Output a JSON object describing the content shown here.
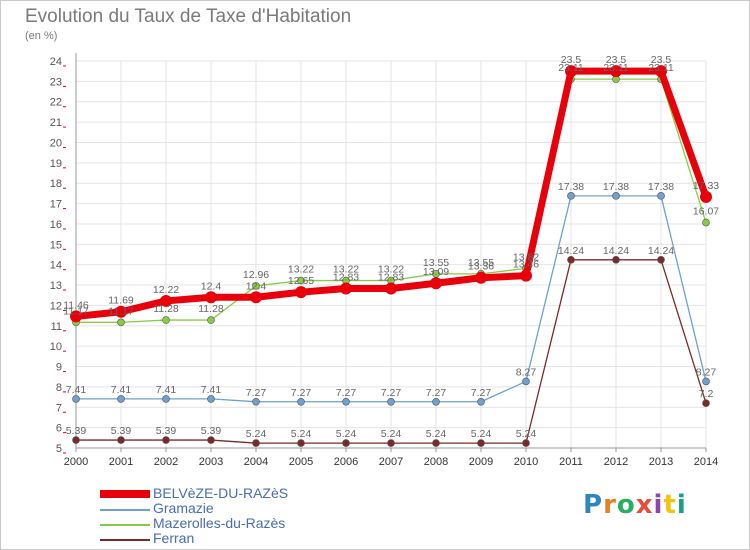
{
  "title": "Evolution du Taux de Taxe d'Habitation",
  "subtitle": "(en %)",
  "logo": {
    "text": "Proxiti",
    "colors": [
      "#2e86c1",
      "#e67e22",
      "#27ae60",
      "#e74c3c",
      "#8e44ad",
      "#f1c40f",
      "#16a085"
    ]
  },
  "chart_data": {
    "type": "line",
    "x": [
      "2000",
      "2001",
      "2002",
      "2003",
      "2004",
      "2005",
      "2006",
      "2007",
      "2008",
      "2009",
      "2010",
      "2011",
      "2012",
      "2013",
      "2014"
    ],
    "ylim": [
      5,
      24
    ],
    "yticks": [
      5,
      6,
      7,
      8,
      9,
      10,
      11,
      12,
      13,
      14,
      15,
      16,
      17,
      18,
      19,
      20,
      21,
      22,
      23,
      24
    ],
    "grid": true,
    "legend_position": "bottom-left",
    "series": [
      {
        "name": "BELVèZE-DU-RAZèS",
        "color": "#e8000b",
        "values": [
          11.46,
          11.69,
          12.22,
          12.4,
          12.4,
          12.65,
          12.83,
          12.83,
          13.09,
          13.36,
          13.46,
          23.5,
          23.5,
          23.5,
          17.33
        ],
        "labels": [
          "11.46",
          "11.69",
          "12.22",
          "12.4",
          "12.4",
          "12.65",
          "12.83",
          "12.83",
          "13.09",
          "13.36",
          "13.46",
          "23.5",
          "23.5",
          "23.5",
          "17.33"
        ]
      },
      {
        "name": "Gramazie",
        "color": "#6fa0d0",
        "values": [
          7.41,
          7.41,
          7.41,
          7.41,
          7.27,
          7.27,
          7.27,
          7.27,
          7.27,
          7.27,
          8.27,
          17.38,
          17.38,
          17.38,
          8.27
        ],
        "labels": [
          "7.41",
          "7.41",
          "7.41",
          "7.41",
          "7.27",
          "7.27",
          "7.27",
          "7.27",
          "7.27",
          "7.27",
          "8.27",
          "17.38",
          "17.38",
          "17.38",
          "8.27"
        ]
      },
      {
        "name": "Mazerolles-du-Razès",
        "color": "#88cc44",
        "values": [
          11.17,
          11.17,
          11.28,
          11.28,
          12.96,
          13.22,
          13.22,
          13.22,
          13.55,
          13.55,
          13.82,
          23.11,
          23.11,
          23.11,
          16.07
        ],
        "labels": [
          "11.17",
          "11.17",
          "11.28",
          "11.28",
          "12.96",
          "13.22",
          "13.22",
          "13.22",
          "13.55",
          "13.55",
          "13.82",
          "23.11",
          "23.11",
          "23.11",
          "16.07"
        ]
      },
      {
        "name": "Ferran",
        "color": "#7a2a2a",
        "values": [
          5.39,
          5.39,
          5.39,
          5.39,
          5.24,
          5.24,
          5.24,
          5.24,
          5.24,
          5.24,
          5.24,
          14.24,
          14.24,
          14.24,
          7.2
        ],
        "labels": [
          "5.39",
          "5.39",
          "5.39",
          "5.39",
          "5.24",
          "5.24",
          "5.24",
          "5.24",
          "5.24",
          "5.24",
          "5.24",
          "14.24",
          "14.24",
          "14.24",
          "7.2"
        ]
      }
    ]
  }
}
